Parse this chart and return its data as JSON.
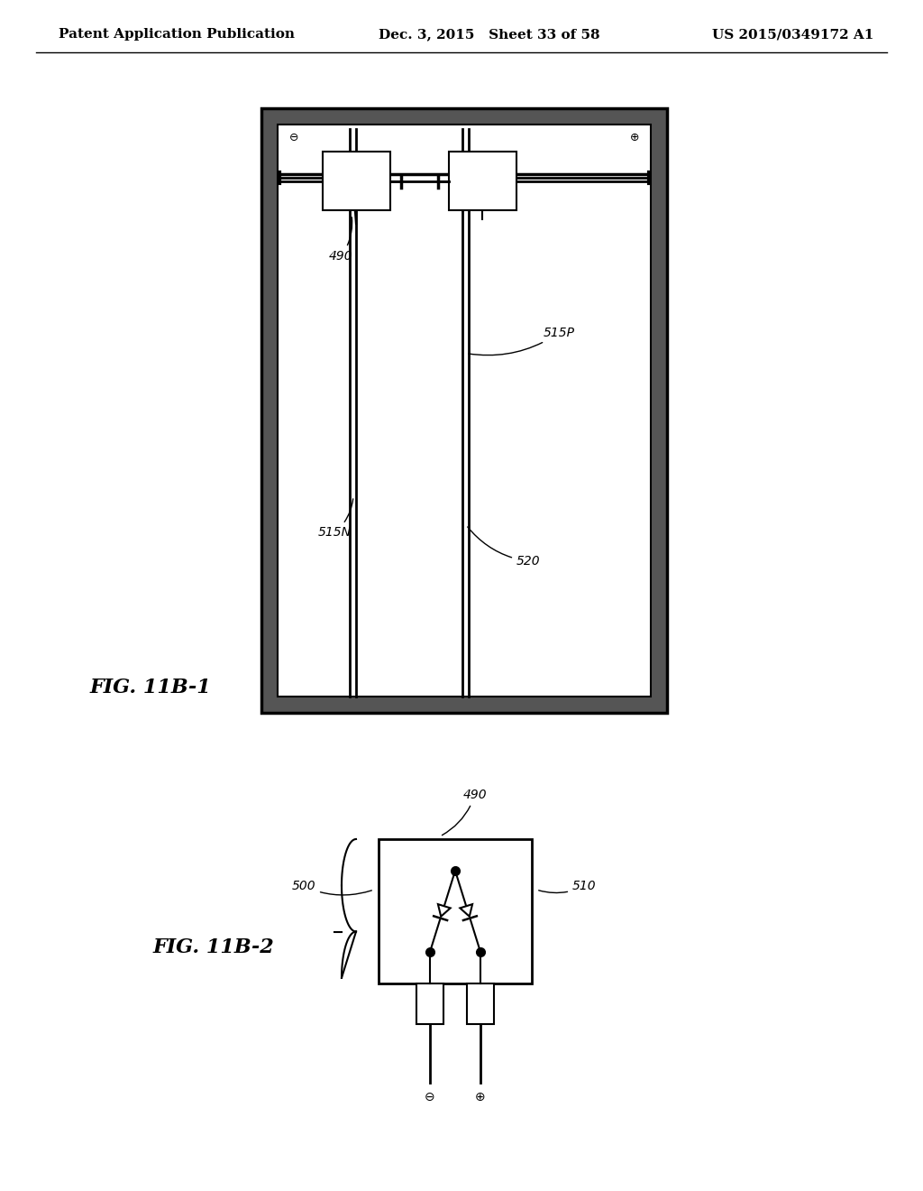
{
  "bg_color": "#ffffff",
  "header_text_left": "Patent Application Publication",
  "header_text_mid": "Dec. 3, 2015   Sheet 33 of 58",
  "header_text_right": "US 2015/0349172 A1",
  "fig1_label": "FIG. 11B-1",
  "fig2_label": "FIG. 11B-2",
  "label_490_fig1": "490",
  "label_515P": "515P",
  "label_515N": "515N",
  "label_520": "520",
  "label_490_fig2": "490",
  "label_500": "500",
  "label_510": "510",
  "minus_sym": "⊖",
  "plus_sym": "⊕"
}
